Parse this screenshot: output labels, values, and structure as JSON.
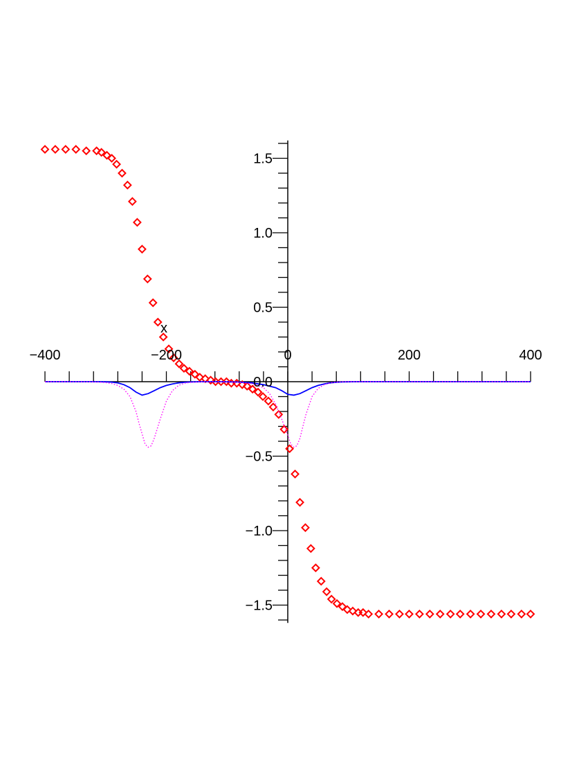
{
  "chart_data": {
    "type": "line",
    "title": "",
    "xlabel": "x",
    "ylabel": "",
    "xlim": [
      -400,
      400
    ],
    "ylim": [
      -1.6,
      1.6
    ],
    "grid": false,
    "legend": "none",
    "x_ticks": [
      "−400",
      "−200",
      "0",
      "200",
      "400"
    ],
    "y_ticks": [
      "1.5",
      "1.0",
      "0.5",
      "0.0",
      "−0.5",
      "−1.0",
      "−1.5"
    ],
    "x_tick_values": [
      -400,
      -200,
      0,
      200,
      400
    ],
    "y_tick_values": [
      1.5,
      1.0,
      0.5,
      0.0,
      -0.5,
      -1.0,
      -1.5
    ],
    "series": [
      {
        "style": "markers",
        "marker": "diamond",
        "color": "#ff0000",
        "x": [
          -400,
          -383,
          -366,
          -349,
          -332,
          -315,
          -307,
          -298,
          -290,
          -282,
          -273,
          -264,
          -256,
          -248,
          -240,
          -231,
          -222,
          -214,
          -205,
          -196,
          -188,
          -179,
          -171,
          -162,
          -153,
          -145,
          -136,
          -127,
          -119,
          -110,
          -101,
          -93,
          -84,
          -75,
          -67,
          -58,
          -49,
          -41,
          -32,
          -24,
          -15,
          -6,
          3,
          12,
          20,
          29,
          38,
          46,
          55,
          64,
          72,
          81,
          90,
          98,
          107,
          116,
          124,
          133,
          150,
          167,
          184,
          200,
          217,
          234,
          251,
          268,
          284,
          301,
          318,
          335,
          352,
          368,
          385,
          400
        ],
        "y": [
          1.56,
          1.56,
          1.56,
          1.56,
          1.55,
          1.55,
          1.54,
          1.52,
          1.5,
          1.46,
          1.4,
          1.32,
          1.21,
          1.07,
          0.89,
          0.69,
          0.53,
          0.4,
          0.3,
          0.22,
          0.16,
          0.12,
          0.09,
          0.07,
          0.05,
          0.03,
          0.02,
          0.01,
          0.0,
          0.0,
          0.0,
          -0.01,
          -0.01,
          -0.02,
          -0.03,
          -0.05,
          -0.07,
          -0.1,
          -0.13,
          -0.17,
          -0.22,
          -0.32,
          -0.45,
          -0.62,
          -0.81,
          -0.98,
          -1.12,
          -1.25,
          -1.34,
          -1.41,
          -1.46,
          -1.49,
          -1.51,
          -1.53,
          -1.54,
          -1.55,
          -1.55,
          -1.56,
          -1.56,
          -1.56,
          -1.56,
          -1.56,
          -1.56,
          -1.56,
          -1.56,
          -1.56,
          -1.56,
          -1.56,
          -1.56,
          -1.56,
          -1.56,
          -1.56,
          -1.56,
          -1.56
        ]
      },
      {
        "style": "solid",
        "color": "#0000ff",
        "x": [
          -400,
          -380,
          -360,
          -340,
          -320,
          -300,
          -290,
          -280,
          -270,
          -260,
          -250,
          -240,
          -230,
          -220,
          -210,
          -200,
          -190,
          -180,
          -170,
          -160,
          -150,
          -140,
          -120,
          -100,
          -80,
          -60,
          -40,
          -20,
          -10,
          0,
          10,
          20,
          30,
          40,
          50,
          60,
          70,
          80,
          90,
          100,
          120,
          140,
          160,
          200,
          250,
          300,
          350,
          400
        ],
        "y": [
          0.0,
          0.0,
          0.0,
          0.0,
          0.0,
          -0.001,
          -0.003,
          -0.008,
          -0.02,
          -0.04,
          -0.07,
          -0.09,
          -0.08,
          -0.06,
          -0.04,
          -0.025,
          -0.015,
          -0.008,
          -0.004,
          -0.002,
          -0.001,
          0.0,
          0.0,
          -0.001,
          -0.003,
          -0.008,
          -0.02,
          -0.04,
          -0.06,
          -0.085,
          -0.09,
          -0.08,
          -0.06,
          -0.04,
          -0.025,
          -0.015,
          -0.008,
          -0.004,
          -0.002,
          -0.001,
          0.0,
          0.0,
          0.0,
          0.0,
          0.0,
          0.0,
          0.0,
          0.0
        ]
      },
      {
        "style": "dotted",
        "color": "#ff00ff",
        "x": [
          -400,
          -360,
          -330,
          -310,
          -300,
          -290,
          -280,
          -270,
          -260,
          -250,
          -245,
          -240,
          -235,
          -230,
          -225,
          -220,
          -210,
          -200,
          -190,
          -180,
          -170,
          -160,
          -140,
          -120,
          -100,
          -80,
          -60,
          -40,
          -30,
          -20,
          -10,
          0,
          5,
          10,
          15,
          20,
          25,
          30,
          40,
          50,
          60,
          70,
          80,
          90,
          100,
          120,
          140,
          200,
          300,
          400
        ],
        "y": [
          0.0,
          0.0,
          -0.001,
          -0.003,
          -0.006,
          -0.012,
          -0.025,
          -0.05,
          -0.1,
          -0.2,
          -0.28,
          -0.35,
          -0.42,
          -0.44,
          -0.43,
          -0.38,
          -0.25,
          -0.13,
          -0.06,
          -0.025,
          -0.01,
          -0.004,
          -0.001,
          0.0,
          -0.001,
          -0.004,
          -0.012,
          -0.04,
          -0.08,
          -0.15,
          -0.25,
          -0.36,
          -0.42,
          -0.44,
          -0.43,
          -0.38,
          -0.3,
          -0.22,
          -0.1,
          -0.045,
          -0.02,
          -0.008,
          -0.003,
          -0.001,
          0.0,
          0.0,
          0.0,
          0.0,
          0.0,
          0.0
        ]
      }
    ]
  }
}
